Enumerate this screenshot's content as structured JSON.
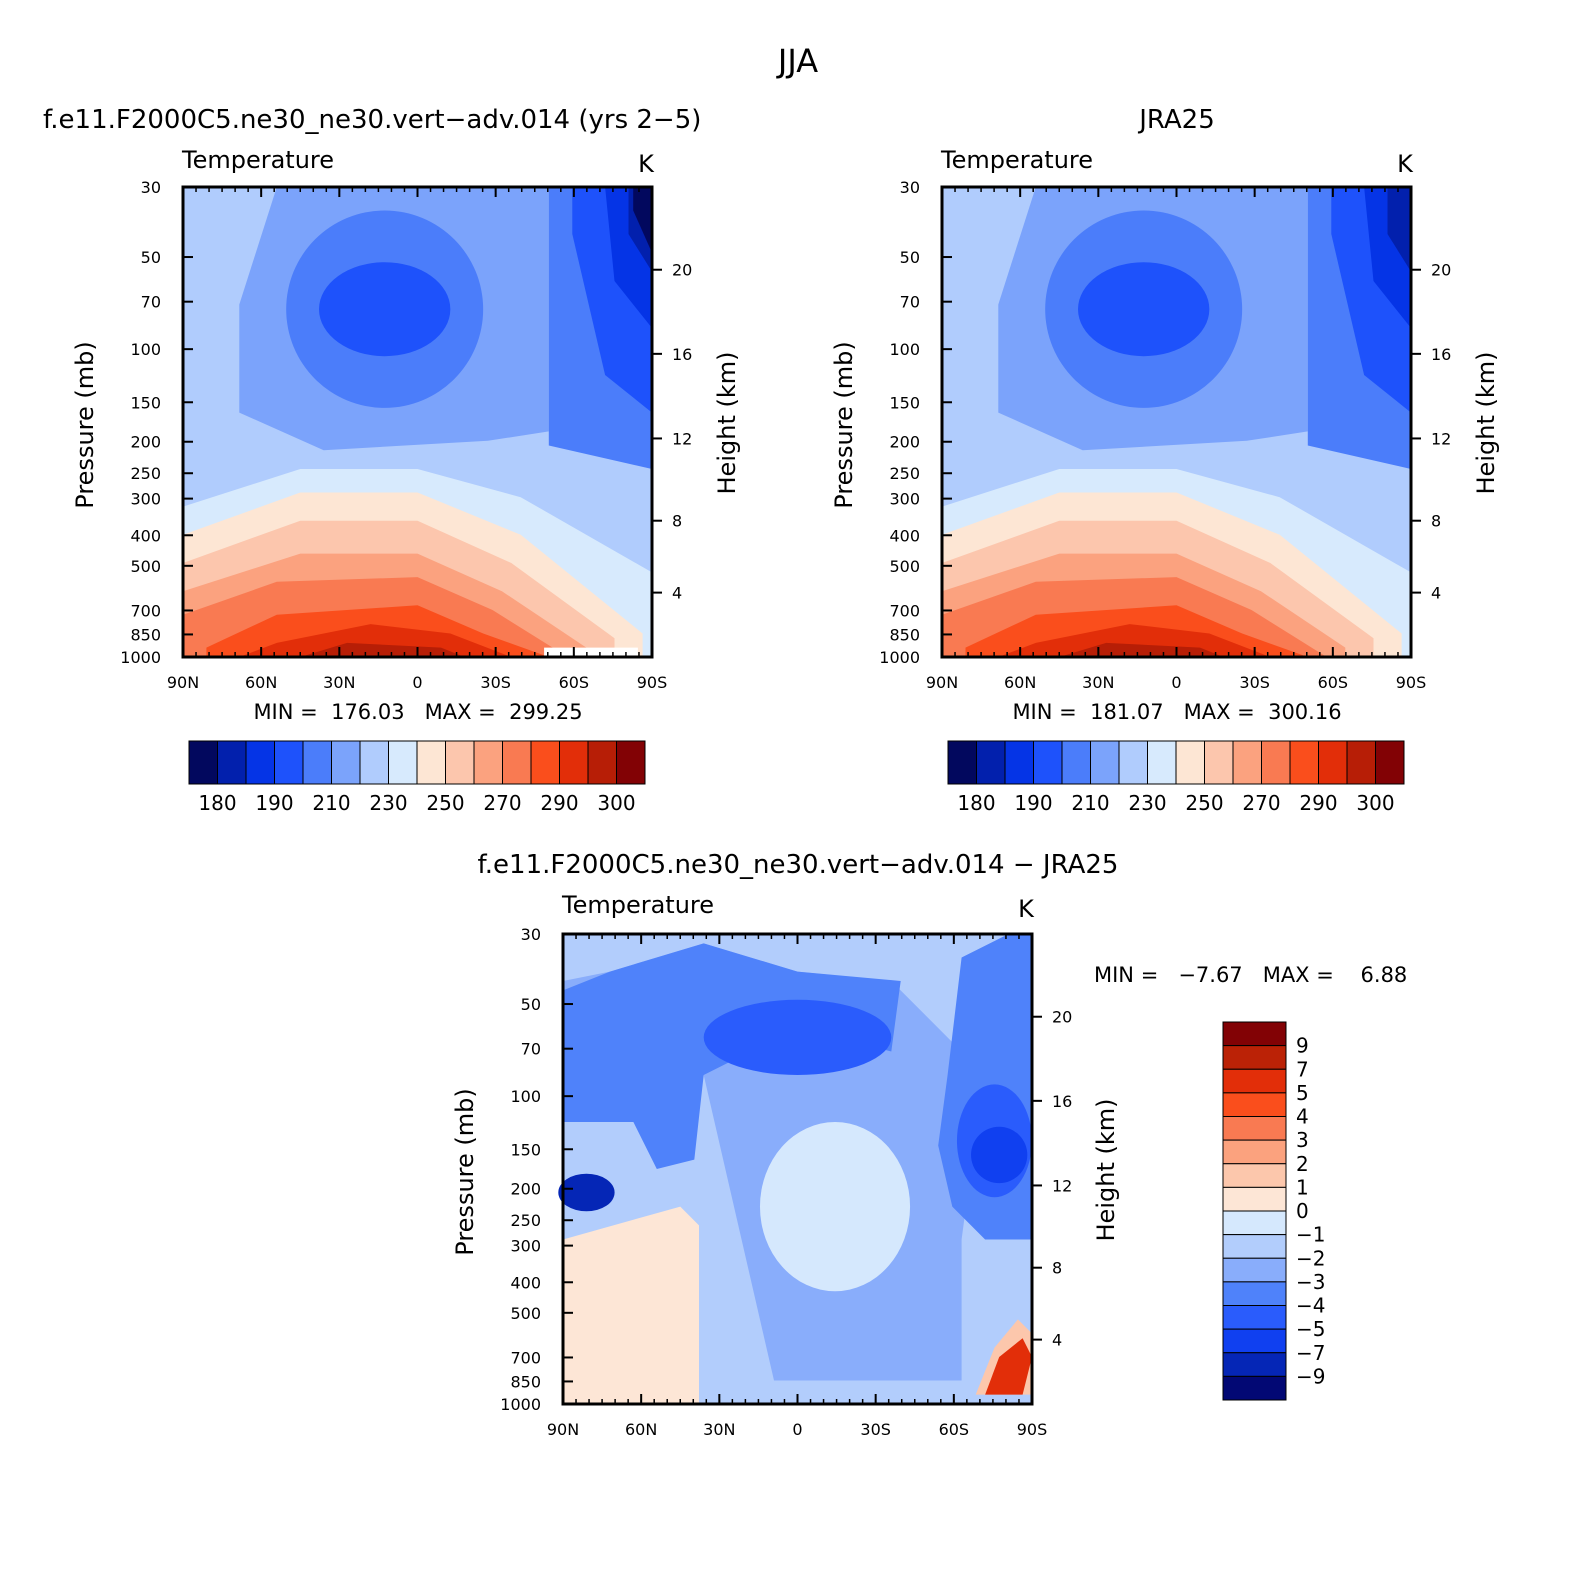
{
  "page_title": "JJA",
  "colors": {
    "temp_fill": [
      "#02085e",
      "#0220ad",
      "#0534e6",
      "#1e52fb",
      "#4b7dfa",
      "#7ba3fb",
      "#b0ccfd",
      "#d7eafd",
      "#fde6d4",
      "#fcc6ad",
      "#fba27f",
      "#f97a52",
      "#fa4e1c",
      "#e22e09",
      "#b71e06",
      "#820205"
    ],
    "diff_fill": [
      "#020874",
      "#0526b6",
      "#1040f0",
      "#2a5cfc",
      "#4f82fa",
      "#89adfb",
      "#b2cdfc",
      "#d5e8fd",
      "#fde6d6",
      "#fcc7ac",
      "#fba27e",
      "#f97a52",
      "#fa4e1c",
      "#e22e09",
      "#bb2206",
      "#820205"
    ]
  },
  "chart_data": [
    {
      "id": "model",
      "type": "heatmap",
      "title": "f.e11.F2000C5.ne30_ne30.vert−adv.014 (yrs 2−5)",
      "variable": "Temperature",
      "units": "K",
      "ylabel": "Pressure (mb)",
      "y2label": "Height (km)",
      "x_ticks": [
        "90N",
        "60N",
        "30N",
        "0",
        "30S",
        "60S",
        "90S"
      ],
      "y_ticks": [
        "30",
        "50",
        "70",
        "100",
        "150",
        "200",
        "250",
        "300",
        "400",
        "500",
        "700",
        "850",
        "1000"
      ],
      "y_scale": "log",
      "y2_ticks": [
        "4",
        "8",
        "12",
        "16",
        "20"
      ],
      "stats_text": "MIN =  176.03   MAX =  299.25",
      "colorbar_labels": [
        "180",
        "190",
        "210",
        "230",
        "250",
        "270",
        "290",
        "300"
      ],
      "colorbar_orientation": "horizontal",
      "field_min": 176.03,
      "field_max": 299.25,
      "bands": [
        {
          "level": 0,
          "cx": 0.5,
          "cy": 0.2
        },
        {
          "level": 6,
          "points": [
            [
              0,
              0.55
            ],
            [
              0.15,
              0.6
            ],
            [
              0.3,
              0.62
            ],
            [
              0.5,
              0.6
            ],
            [
              0.7,
              0.56
            ],
            [
              0.85,
              0.45
            ],
            [
              1,
              0.35
            ],
            [
              1,
              1
            ],
            [
              0,
              1
            ]
          ]
        },
        {
          "level": 5,
          "points": [
            [
              0.2,
              0
            ],
            [
              0.12,
              0.25
            ],
            [
              0.1,
              0.45
            ],
            [
              0.3,
              0.5
            ],
            [
              0.55,
              0.5
            ],
            [
              0.75,
              0.46
            ],
            [
              0.78,
              0.2
            ],
            [
              0.78,
              0
            ],
            [
              1,
              0
            ],
            [
              1,
              1
            ],
            [
              0,
              1
            ],
            [
              0,
              0
            ]
          ]
        }
      ]
    },
    {
      "id": "obs",
      "type": "heatmap",
      "title": "JRA25",
      "variable": "Temperature",
      "units": "K",
      "ylabel": "Pressure (mb)",
      "y2label": "Height (km)",
      "x_ticks": [
        "90N",
        "60N",
        "30N",
        "0",
        "30S",
        "60S",
        "90S"
      ],
      "y_ticks": [
        "30",
        "50",
        "70",
        "100",
        "150",
        "200",
        "250",
        "300",
        "400",
        "500",
        "700",
        "850",
        "1000"
      ],
      "y_scale": "log",
      "y2_ticks": [
        "4",
        "8",
        "12",
        "16",
        "20"
      ],
      "stats_text": "MIN =  181.07   MAX =  300.16",
      "colorbar_labels": [
        "180",
        "190",
        "210",
        "230",
        "250",
        "270",
        "290",
        "300"
      ],
      "colorbar_orientation": "horizontal",
      "field_min": 181.07,
      "field_max": 300.16
    },
    {
      "id": "diff",
      "type": "heatmap",
      "title": "f.e11.F2000C5.ne30_ne30.vert−adv.014 − JRA25",
      "variable": "Temperature",
      "units": "K",
      "ylabel": "Pressure (mb)",
      "y2label": "Height (km)",
      "x_ticks": [
        "90N",
        "60N",
        "30N",
        "0",
        "30S",
        "60S",
        "90S"
      ],
      "y_ticks": [
        "30",
        "50",
        "70",
        "100",
        "150",
        "200",
        "250",
        "300",
        "400",
        "500",
        "700",
        "850",
        "1000"
      ],
      "y_scale": "log",
      "y2_ticks": [
        "4",
        "8",
        "12",
        "16",
        "20"
      ],
      "stats_text": "MIN =   −7.67   MAX =    6.88",
      "colorbar_labels": [
        "9",
        "7",
        "5",
        "4",
        "3",
        "2",
        "1",
        "0",
        "−1",
        "−2",
        "−3",
        "−4",
        "−5",
        "−7",
        "−9"
      ],
      "colorbar_orientation": "vertical",
      "field_min": -7.67,
      "field_max": 6.88
    }
  ]
}
